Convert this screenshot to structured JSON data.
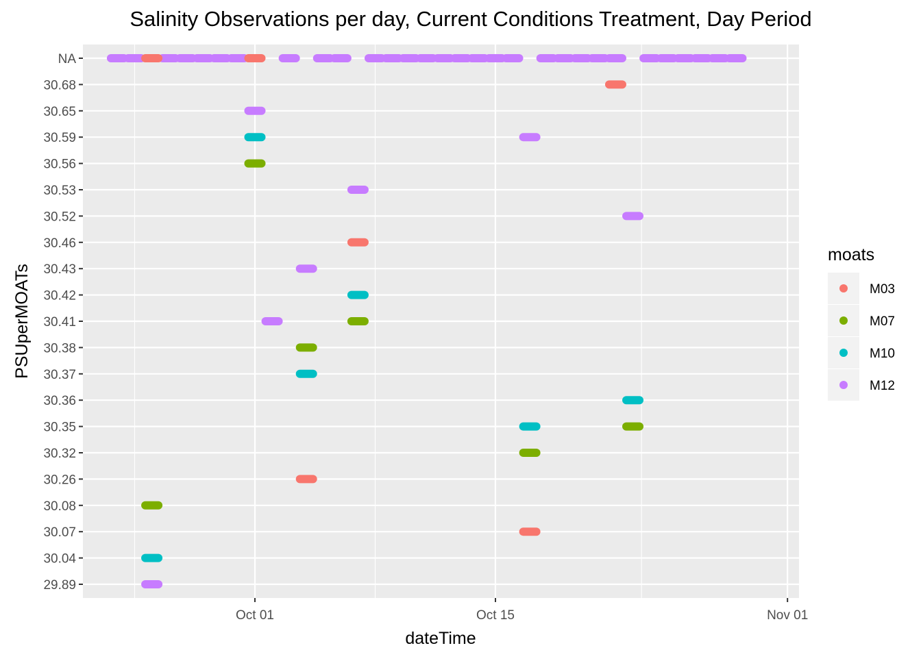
{
  "chart_data": {
    "type": "scatter",
    "title": "Salinity Observations per day, Current Conditions Treatment, Day Period",
    "xlabel": "dateTime",
    "ylabel": "PSUperMOATs",
    "x_ticks": [
      "Oct 01",
      "Oct 15",
      "Nov 01"
    ],
    "y_categories": [
      "29.89",
      "30.04",
      "30.07",
      "30.08",
      "30.26",
      "30.32",
      "30.35",
      "30.36",
      "30.37",
      "30.38",
      "30.41",
      "30.42",
      "30.43",
      "30.46",
      "30.52",
      "30.53",
      "30.56",
      "30.59",
      "30.65",
      "30.68",
      "NA"
    ],
    "grid": true,
    "legend": {
      "title": "moats",
      "position": "right",
      "entries": [
        {
          "name": "M03",
          "color": "#F8766D"
        },
        {
          "name": "M07",
          "color": "#7CAE00"
        },
        {
          "name": "M10",
          "color": "#00BFC4"
        },
        {
          "name": "M12",
          "color": "#C77CFF"
        }
      ]
    },
    "day_segments": {
      "M12": [
        {
          "start": "Sep 23",
          "end": "Sep 23",
          "y": "NA"
        },
        {
          "start": "Sep 24",
          "end": "Sep 24",
          "y": "NA"
        },
        {
          "start": "Sep 26",
          "end": "Sep 26",
          "y": "NA"
        },
        {
          "start": "Sep 27",
          "end": "Sep 27",
          "y": "NA"
        },
        {
          "start": "Sep 28",
          "end": "Sep 28",
          "y": "NA"
        },
        {
          "start": "Sep 29",
          "end": "Sep 29",
          "y": "NA"
        },
        {
          "start": "Sep 30",
          "end": "Sep 30",
          "y": "NA"
        },
        {
          "start": "Oct 03",
          "end": "Oct 03",
          "y": "NA"
        },
        {
          "start": "Oct 05",
          "end": "Oct 05",
          "y": "NA"
        },
        {
          "start": "Oct 06",
          "end": "Oct 06",
          "y": "NA"
        },
        {
          "start": "Oct 08",
          "end": "Oct 08",
          "y": "NA"
        },
        {
          "start": "Oct 09",
          "end": "Oct 09",
          "y": "NA"
        },
        {
          "start": "Oct 10",
          "end": "Oct 10",
          "y": "NA"
        },
        {
          "start": "Oct 11",
          "end": "Oct 11",
          "y": "NA"
        },
        {
          "start": "Oct 12",
          "end": "Oct 12",
          "y": "NA"
        },
        {
          "start": "Oct 13",
          "end": "Oct 13",
          "y": "NA"
        },
        {
          "start": "Oct 14",
          "end": "Oct 14",
          "y": "NA"
        },
        {
          "start": "Oct 15",
          "end": "Oct 15",
          "y": "NA"
        },
        {
          "start": "Oct 16",
          "end": "Oct 16",
          "y": "NA"
        },
        {
          "start": "Oct 18",
          "end": "Oct 18",
          "y": "NA"
        },
        {
          "start": "Oct 19",
          "end": "Oct 19",
          "y": "NA"
        },
        {
          "start": "Oct 20",
          "end": "Oct 20",
          "y": "NA"
        },
        {
          "start": "Oct 21",
          "end": "Oct 21",
          "y": "NA"
        },
        {
          "start": "Oct 22",
          "end": "Oct 22",
          "y": "NA"
        },
        {
          "start": "Oct 24",
          "end": "Oct 24",
          "y": "NA"
        },
        {
          "start": "Oct 25",
          "end": "Oct 25",
          "y": "NA"
        },
        {
          "start": "Oct 26",
          "end": "Oct 26",
          "y": "NA"
        },
        {
          "start": "Oct 27",
          "end": "Oct 27",
          "y": "NA"
        },
        {
          "start": "Oct 28",
          "end": "Oct 28",
          "y": "NA"
        },
        {
          "start": "Oct 29",
          "end": "Oct 29",
          "y": "NA"
        },
        {
          "start": "Oct 01",
          "end": "Oct 01",
          "y": "30.65"
        },
        {
          "start": "Oct 17",
          "end": "Oct 17",
          "y": "30.59"
        },
        {
          "start": "Oct 07",
          "end": "Oct 07",
          "y": "30.53"
        },
        {
          "start": "Oct 23",
          "end": "Oct 23",
          "y": "30.52"
        },
        {
          "start": "Oct 04",
          "end": "Oct 04",
          "y": "30.43"
        },
        {
          "start": "Oct 02",
          "end": "Oct 02",
          "y": "30.41"
        },
        {
          "start": "Sep 25",
          "end": "Sep 25",
          "y": "29.89"
        }
      ],
      "M03": [
        {
          "start": "Sep 25",
          "end": "Sep 25",
          "y": "NA"
        },
        {
          "start": "Oct 01",
          "end": "Oct 01",
          "y": "NA"
        },
        {
          "start": "Oct 22",
          "end": "Oct 22",
          "y": "30.68"
        },
        {
          "start": "Oct 07",
          "end": "Oct 07",
          "y": "30.46"
        },
        {
          "start": "Oct 04",
          "end": "Oct 04",
          "y": "30.26"
        },
        {
          "start": "Oct 17",
          "end": "Oct 17",
          "y": "30.07"
        }
      ],
      "M07": [
        {
          "start": "Oct 01",
          "end": "Oct 01",
          "y": "30.56"
        },
        {
          "start": "Oct 07",
          "end": "Oct 07",
          "y": "30.41"
        },
        {
          "start": "Oct 04",
          "end": "Oct 04",
          "y": "30.38"
        },
        {
          "start": "Oct 23",
          "end": "Oct 23",
          "y": "30.35"
        },
        {
          "start": "Oct 17",
          "end": "Oct 17",
          "y": "30.32"
        },
        {
          "start": "Sep 25",
          "end": "Sep 25",
          "y": "30.08"
        }
      ],
      "M10": [
        {
          "start": "Oct 01",
          "end": "Oct 01",
          "y": "30.59"
        },
        {
          "start": "Oct 07",
          "end": "Oct 07",
          "y": "30.42"
        },
        {
          "start": "Oct 04",
          "end": "Oct 04",
          "y": "30.37"
        },
        {
          "start": "Oct 23",
          "end": "Oct 23",
          "y": "30.36"
        },
        {
          "start": "Oct 17",
          "end": "Oct 17",
          "y": "30.35"
        },
        {
          "start": "Sep 25",
          "end": "Sep 25",
          "y": "30.04"
        }
      ]
    }
  }
}
